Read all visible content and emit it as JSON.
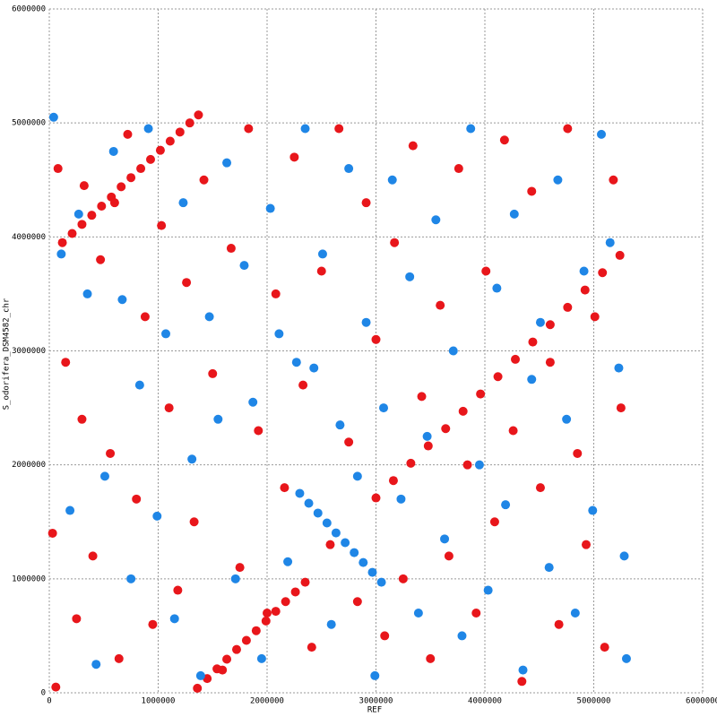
{
  "chart_data": {
    "type": "scatter",
    "x_label": "REF",
    "y_label": "S_odorifera_DSM4582_chr",
    "xlim": [
      0,
      6000000
    ],
    "ylim": [
      0,
      6000000
    ],
    "xticks": [
      0,
      1000000,
      2000000,
      3000000,
      4000000,
      5000000,
      6000000
    ],
    "yticks": [
      0,
      1000000,
      2000000,
      3000000,
      4000000,
      5000000,
      6000000
    ],
    "grid": true,
    "series": [
      {
        "color": "#e8161b",
        "x": [
          120000,
          210000,
          300000,
          390000,
          480000,
          570000,
          660000,
          750000,
          840000,
          930000,
          1020000,
          1110000,
          1200000,
          1290000,
          1370000,
          1360000,
          1450000,
          1540000,
          1630000,
          1720000,
          1810000,
          1900000,
          1990000,
          2080000,
          2170000,
          2260000,
          2350000,
          3000000,
          3160000,
          3320000,
          3480000,
          3640000,
          3800000,
          3960000,
          4120000,
          4280000,
          4440000,
          4600000,
          4760000,
          4920000,
          5080000,
          5240000,
          80000,
          150000,
          250000,
          320000,
          400000,
          470000,
          560000,
          640000,
          720000,
          800000,
          880000,
          950000,
          1030000,
          1100000,
          1180000,
          1260000,
          1330000,
          1420000,
          1500000,
          1590000,
          1670000,
          1750000,
          1830000,
          1920000,
          2000000,
          2080000,
          2160000,
          2250000,
          2330000,
          2410000,
          2500000,
          2580000,
          2660000,
          2750000,
          2830000,
          2910000,
          3000000,
          3080000,
          3170000,
          3250000,
          3340000,
          3420000,
          3500000,
          3590000,
          3670000,
          3760000,
          3840000,
          3920000,
          4010000,
          4090000,
          4180000,
          4260000,
          4340000,
          4430000,
          4510000,
          4600000,
          4680000,
          4760000,
          4850000,
          4930000,
          5010000,
          5100000,
          5180000,
          5250000,
          30000,
          60000,
          300000,
          600000
        ],
        "y": [
          3950000,
          4030000,
          4110000,
          4190000,
          4270000,
          4350000,
          4440000,
          4520000,
          4600000,
          4680000,
          4760000,
          4840000,
          4920000,
          5000000,
          5070000,
          40000,
          125000,
          210000,
          295000,
          380000,
          460000,
          545000,
          630000,
          715000,
          800000,
          885000,
          970000,
          1710000,
          1862000,
          2014000,
          2166000,
          2318000,
          2470000,
          2622000,
          2774000,
          2926000,
          3078000,
          3230000,
          3382000,
          3534000,
          3686000,
          3838000,
          4600000,
          2900000,
          650000,
          4450000,
          1200000,
          3800000,
          2100000,
          300000,
          4900000,
          1700000,
          3300000,
          600000,
          4100000,
          2500000,
          900000,
          3600000,
          1500000,
          4500000,
          2800000,
          200000,
          3900000,
          1100000,
          4950000,
          2300000,
          700000,
          3500000,
          1800000,
          4700000,
          2700000,
          400000,
          3700000,
          1300000,
          4950000,
          2200000,
          800000,
          4300000,
          3100000,
          500000,
          3950000,
          1000000,
          4800000,
          2600000,
          300000,
          3400000,
          1200000,
          4600000,
          2000000,
          700000,
          3700000,
          1500000,
          4850000,
          2300000,
          100000,
          4400000,
          1800000,
          2900000,
          600000,
          4950000,
          2100000,
          1300000,
          3300000,
          400000,
          4500000,
          2500000,
          1400000,
          50000,
          2400000,
          4300000
        ]
      },
      {
        "color": "#1f86e6",
        "x": [
          2300000,
          2383000,
          2467000,
          2550000,
          2633000,
          2717000,
          2800000,
          2883000,
          2967000,
          3050000,
          40000,
          110000,
          190000,
          270000,
          350000,
          430000,
          510000,
          590000,
          670000,
          750000,
          830000,
          910000,
          990000,
          1070000,
          1150000,
          1230000,
          1310000,
          1390000,
          1470000,
          1550000,
          1630000,
          1710000,
          1790000,
          1870000,
          1950000,
          2030000,
          2110000,
          2190000,
          2270000,
          2350000,
          2430000,
          2510000,
          2590000,
          2670000,
          2750000,
          2830000,
          2910000,
          2990000,
          3070000,
          3150000,
          3230000,
          3310000,
          3390000,
          3470000,
          3550000,
          3630000,
          3710000,
          3790000,
          3870000,
          3950000,
          4030000,
          4110000,
          4190000,
          4270000,
          4350000,
          4430000,
          4510000,
          4590000,
          4670000,
          4750000,
          4830000,
          4910000,
          4990000,
          5070000,
          5150000,
          5230000,
          5280000,
          5300000
        ],
        "y": [
          1750000,
          1663000,
          1577000,
          1490000,
          1403000,
          1317000,
          1230000,
          1143000,
          1057000,
          970000,
          5050000,
          3850000,
          1600000,
          4200000,
          3500000,
          250000,
          1900000,
          4750000,
          3450000,
          1000000,
          2700000,
          4950000,
          1550000,
          3150000,
          650000,
          4300000,
          2050000,
          150000,
          3300000,
          2400000,
          4650000,
          1000000,
          3750000,
          2550000,
          300000,
          4250000,
          3150000,
          1150000,
          2900000,
          4950000,
          2850000,
          3850000,
          600000,
          2350000,
          4600000,
          1900000,
          3250000,
          150000,
          2500000,
          4500000,
          1700000,
          3650000,
          700000,
          2250000,
          4150000,
          1350000,
          3000000,
          500000,
          4950000,
          2000000,
          900000,
          3550000,
          1650000,
          4200000,
          200000,
          2750000,
          3250000,
          1100000,
          4500000,
          2400000,
          700000,
          3700000,
          1600000,
          4900000,
          3950000,
          2850000,
          1200000,
          300000
        ]
      }
    ]
  }
}
